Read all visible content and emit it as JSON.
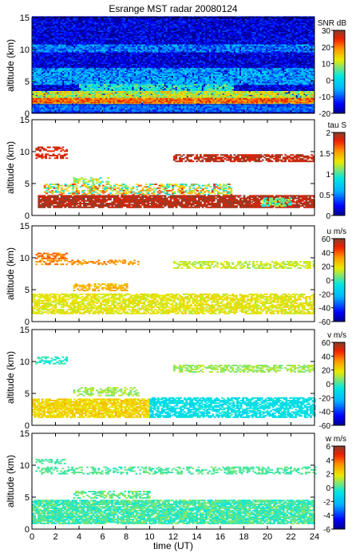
{
  "chart_data": {
    "type": "heatmap",
    "title": "Esrange MST radar 20080124",
    "xlabel": "time (UT)",
    "x_ticks": [
      0,
      2,
      4,
      6,
      8,
      10,
      12,
      14,
      16,
      18,
      20,
      22,
      24
    ],
    "xlim": [
      0,
      24
    ],
    "panels": [
      {
        "ylabel": "altitude (km)",
        "ylim": [
          0,
          15
        ],
        "y_ticks": [
          0,
          5,
          10,
          15
        ],
        "cbar_label": "SNR dB",
        "cbar_range": [
          -20,
          30
        ],
        "cbar_ticks": [
          30,
          20,
          10,
          0,
          -10,
          -20
        ],
        "layers": [
          {
            "t": [
              0,
              24
            ],
            "z": [
              0,
              15
            ],
            "v": -16,
            "n": 6,
            "cov": 1.0
          },
          {
            "t": [
              0,
              24
            ],
            "z": [
              9.6,
              10.6
            ],
            "v": -8,
            "n": 5,
            "cov": 0.85
          },
          {
            "t": [
              0,
              24
            ],
            "z": [
              4.5,
              7
            ],
            "v": -5,
            "n": 6,
            "cov": 0.8
          },
          {
            "t": [
              4,
              17
            ],
            "z": [
              3.2,
              4.6
            ],
            "v": 3,
            "n": 6,
            "cov": 0.8
          },
          {
            "t": [
              0,
              24
            ],
            "z": [
              1.5,
              3.5
            ],
            "v": 11,
            "n": 7,
            "cov": 0.95
          },
          {
            "t": [
              0,
              24
            ],
            "z": [
              1.6,
              2.3
            ],
            "v": 22,
            "n": 5,
            "cov": 0.9
          },
          {
            "t": [
              0,
              24
            ],
            "z": [
              0.3,
              1.2
            ],
            "v": -9,
            "n": 4,
            "cov": 1.0
          }
        ]
      },
      {
        "ylabel": "altitude (km)",
        "ylim": [
          0,
          15
        ],
        "y_ticks": [
          0,
          5,
          10,
          15
        ],
        "cbar_label": "tau S",
        "cbar_range": [
          0,
          2
        ],
        "cbar_ticks": [
          2,
          1.5,
          1,
          0.5,
          0
        ],
        "layers": [
          {
            "t": [
              0.3,
              3
            ],
            "z": [
              10,
              10.6
            ],
            "v": 1.85,
            "n": 0.1,
            "cov": 0.5
          },
          {
            "t": [
              0.3,
              3
            ],
            "z": [
              8.9,
              9.6
            ],
            "v": 1.85,
            "n": 0.1,
            "cov": 0.6
          },
          {
            "t": [
              12,
              24
            ],
            "z": [
              8.4,
              9.4
            ],
            "v": 1.9,
            "n": 0.1,
            "cov": 0.7
          },
          {
            "t": [
              3.5,
              6.5
            ],
            "z": [
              5,
              6
            ],
            "v": 1.2,
            "n": 0.3,
            "cov": 0.5
          },
          {
            "t": [
              1,
              17
            ],
            "z": [
              3.2,
              5
            ],
            "v": 1.3,
            "n": 0.5,
            "cov": 0.45
          },
          {
            "t": [
              0.5,
              24
            ],
            "z": [
              1.2,
              3.2
            ],
            "v": 1.92,
            "n": 0.1,
            "cov": 0.85
          },
          {
            "t": [
              19.5,
              22
            ],
            "z": [
              1.4,
              2.8
            ],
            "v": 1.1,
            "n": 0.2,
            "cov": 0.6
          }
        ]
      },
      {
        "ylabel": "altitude (km)",
        "ylim": [
          0,
          15
        ],
        "y_ticks": [
          0,
          5,
          10,
          15
        ],
        "cbar_label": "u m/s",
        "cbar_range": [
          -60,
          60
        ],
        "cbar_ticks": [
          60,
          40,
          20,
          0,
          -20,
          -40,
          -60
        ],
        "layers": [
          {
            "t": [
              0.3,
              3
            ],
            "z": [
              9.8,
              10.6
            ],
            "v": 38,
            "n": 6,
            "cov": 0.6
          },
          {
            "t": [
              0.3,
              9
            ],
            "z": [
              8.9,
              9.6
            ],
            "v": 34,
            "n": 6,
            "cov": 0.45
          },
          {
            "t": [
              12,
              24
            ],
            "z": [
              8.3,
              9.3
            ],
            "v": 14,
            "n": 6,
            "cov": 0.55
          },
          {
            "t": [
              3.5,
              8
            ],
            "z": [
              4.8,
              6
            ],
            "v": 28,
            "n": 6,
            "cov": 0.5
          },
          {
            "t": [
              0,
              24
            ],
            "z": [
              1.2,
              4.4
            ],
            "v": 18,
            "n": 6,
            "cov": 0.7
          }
        ]
      },
      {
        "ylabel": "altitude (km)",
        "ylim": [
          0,
          15
        ],
        "y_ticks": [
          0,
          5,
          10,
          15
        ],
        "cbar_label": "v m/s",
        "cbar_range": [
          -60,
          60
        ],
        "cbar_ticks": [
          60,
          40,
          20,
          0,
          -20,
          -40,
          -60
        ],
        "layers": [
          {
            "t": [
              0.3,
              3
            ],
            "z": [
              9.6,
              10.6
            ],
            "v": -2,
            "n": 6,
            "cov": 0.45
          },
          {
            "t": [
              12,
              24
            ],
            "z": [
              8.3,
              9.3
            ],
            "v": 10,
            "n": 6,
            "cov": 0.55
          },
          {
            "t": [
              3.5,
              9
            ],
            "z": [
              4.6,
              6
            ],
            "v": 10,
            "n": 6,
            "cov": 0.45
          },
          {
            "t": [
              0,
              10
            ],
            "z": [
              1.2,
              4.2
            ],
            "v": 22,
            "n": 6,
            "cov": 0.8
          },
          {
            "t": [
              10,
              24
            ],
            "z": [
              1.2,
              4.4
            ],
            "v": -8,
            "n": 6,
            "cov": 0.7
          }
        ]
      },
      {
        "ylabel": "altitude (km)",
        "ylim": [
          0,
          15
        ],
        "y_ticks": [
          0,
          5,
          10,
          15
        ],
        "cbar_label": "w m/s",
        "cbar_range": [
          -6,
          6
        ],
        "cbar_ticks": [
          6,
          4,
          2,
          0,
          -2,
          -4,
          -6
        ],
        "layers": [
          {
            "t": [
              0.3,
              3
            ],
            "z": [
              10.2,
              10.8
            ],
            "v": 0.2,
            "n": 0.5,
            "cov": 0.5
          },
          {
            "t": [
              0.3,
              24
            ],
            "z": [
              8.6,
              9.6
            ],
            "v": 0.2,
            "n": 0.5,
            "cov": 0.4
          },
          {
            "t": [
              3.5,
              10
            ],
            "z": [
              4.8,
              6
            ],
            "v": 0.4,
            "n": 0.8,
            "cov": 0.5
          },
          {
            "t": [
              0,
              24
            ],
            "z": [
              0.8,
              4.6
            ],
            "v": 0.1,
            "n": 0.8,
            "cov": 0.85
          }
        ]
      }
    ]
  }
}
